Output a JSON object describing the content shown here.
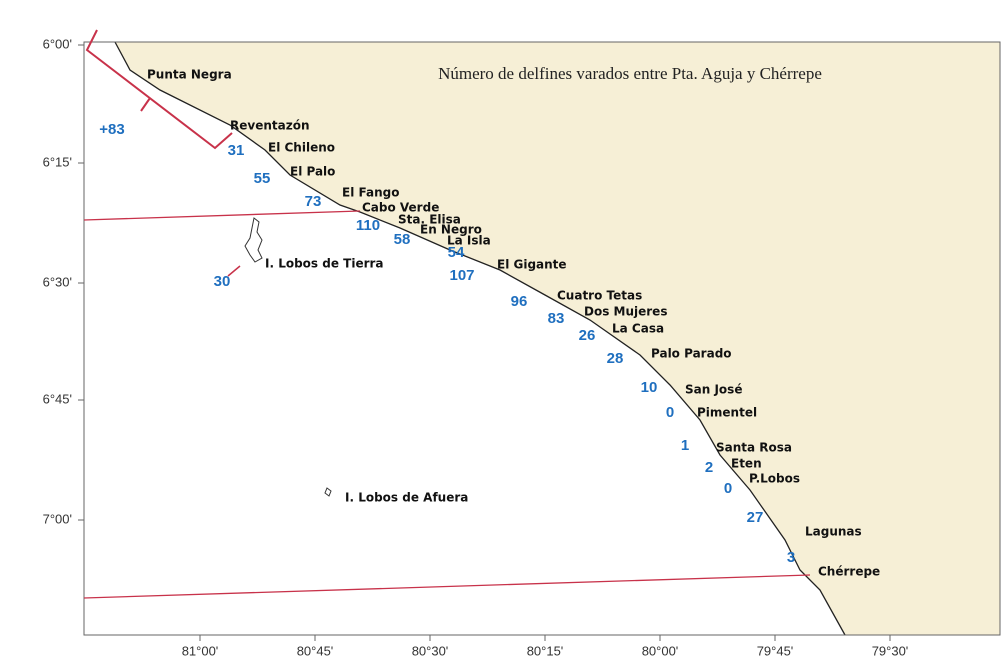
{
  "title": "Número de delfines varados entre Pta. Aguja y Chérrepe",
  "lat_ticks": [
    "6°00'",
    "6°15'",
    "6°30'",
    "6°45'",
    "7°00'"
  ],
  "lon_ticks": [
    "81°00'",
    "80°45'",
    "80°30'",
    "80°15'",
    "80°00'",
    "79°45'",
    "79°30'"
  ],
  "places": [
    "Punta Negra",
    "Reventazón",
    "El Chileno",
    "El Palo",
    "El Fango",
    "Cabo Verde",
    "Sta. Elisa",
    "En Negro",
    "La Isla",
    "El Gigante",
    "I. Lobos de Tierra",
    "Cuatro Tetas",
    "Dos Mujeres",
    "La Casa",
    "Palo Parado",
    "San José",
    "Pimentel",
    "Santa Rosa",
    "Eten",
    "P.Lobos",
    "I. Lobos de Afuera",
    "Lagunas",
    "Chérrepe"
  ],
  "counts": [
    "+83",
    31,
    55,
    73,
    110,
    58,
    54,
    107,
    96,
    83,
    26,
    28,
    10,
    0,
    1,
    2,
    0,
    27,
    3,
    30
  ]
}
